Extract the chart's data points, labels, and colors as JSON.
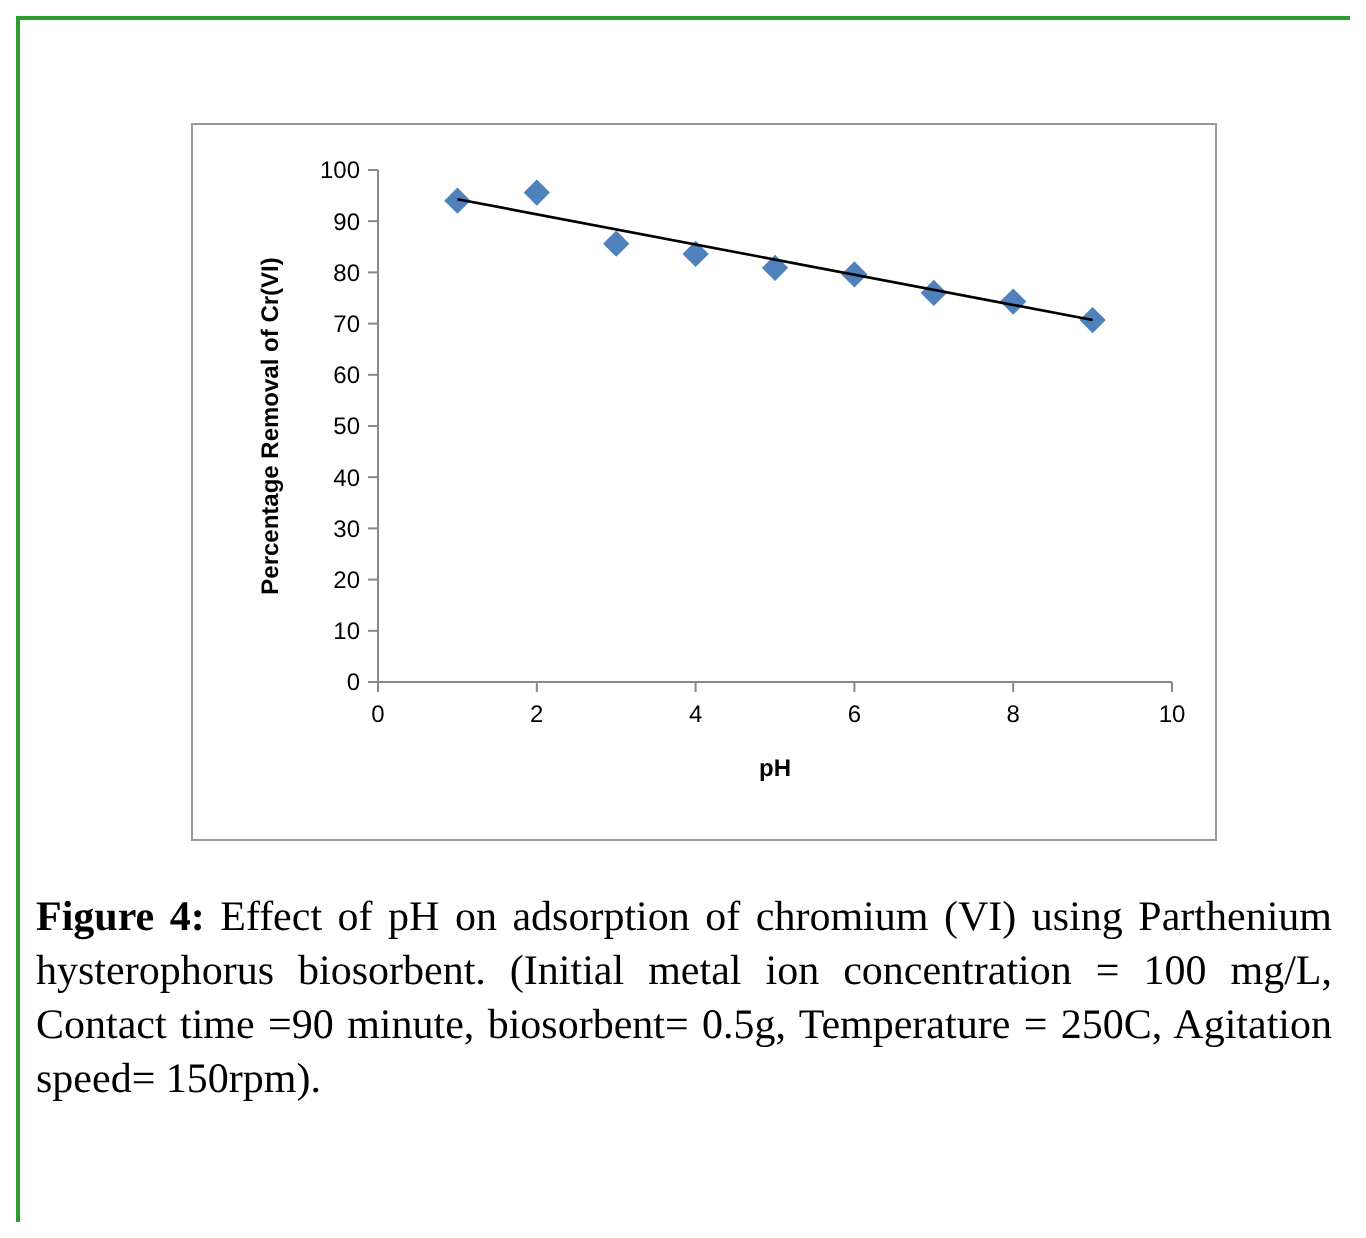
{
  "chart_data": {
    "type": "scatter",
    "xlabel": "pH",
    "ylabel": "Percentage Removal of Cr(VI)",
    "xlim": [
      0,
      10
    ],
    "ylim": [
      0,
      100
    ],
    "xticks": [
      0,
      2,
      4,
      6,
      8,
      10
    ],
    "yticks": [
      0,
      10,
      20,
      30,
      40,
      50,
      60,
      70,
      80,
      90,
      100
    ],
    "marker": "diamond",
    "grid": false,
    "series": [
      {
        "color": "#4f81bd",
        "x": [
          1,
          2,
          3,
          4,
          5,
          6,
          7,
          8,
          9
        ],
        "values": [
          94.0,
          95.6,
          85.6,
          83.6,
          80.9,
          79.6,
          76,
          74.3,
          70.7
        ]
      },
      {
        "type": "line",
        "color": "#000000",
        "x": [
          1,
          9
        ],
        "values": [
          94.3,
          70.7
        ],
        "marker": "none"
      }
    ],
    "annotations": [
      "Figure 4:",
      "Effect of pH on adsorption of chromium (VI) using Parthenium hysterophorus biosorbent. (Initial metal ion concentration = 100 mg/L, Contact time =90 minute, biosorbent= 0.5g, Temperature = 250C, Agitation speed= 150rpm)."
    ]
  }
}
